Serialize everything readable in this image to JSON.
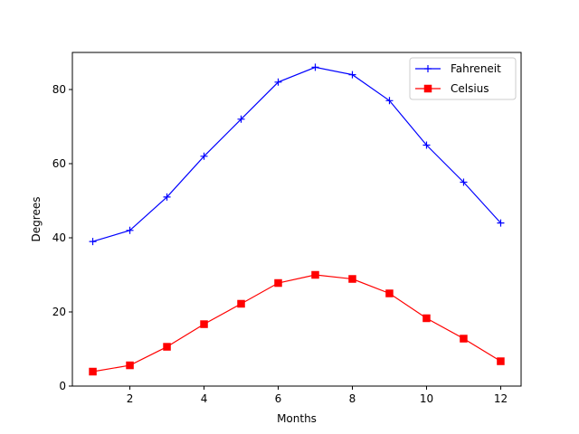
{
  "chart_data": {
    "type": "line",
    "title": "",
    "xlabel": "Months",
    "ylabel": "Degrees",
    "xlim": [
      0.45,
      12.55
    ],
    "ylim": [
      0,
      90
    ],
    "xticks": [
      2,
      4,
      6,
      8,
      10,
      12
    ],
    "yticks": [
      0,
      20,
      40,
      60,
      80
    ],
    "grid": false,
    "legend": {
      "placement": "top-right"
    },
    "x": [
      1,
      2,
      3,
      4,
      5,
      6,
      7,
      8,
      9,
      10,
      11,
      12
    ],
    "series": [
      {
        "name": "Fahreneit",
        "color": "#0000ff",
        "marker": "plus",
        "values": [
          39,
          42,
          51,
          62,
          72,
          82,
          86,
          84,
          77,
          65,
          55,
          44
        ]
      },
      {
        "name": "Celsius",
        "color": "#ff0000",
        "marker": "square",
        "values": [
          3.9,
          5.6,
          10.6,
          16.7,
          22.2,
          27.8,
          30.0,
          28.9,
          25.0,
          18.3,
          12.8,
          6.7
        ]
      }
    ]
  }
}
